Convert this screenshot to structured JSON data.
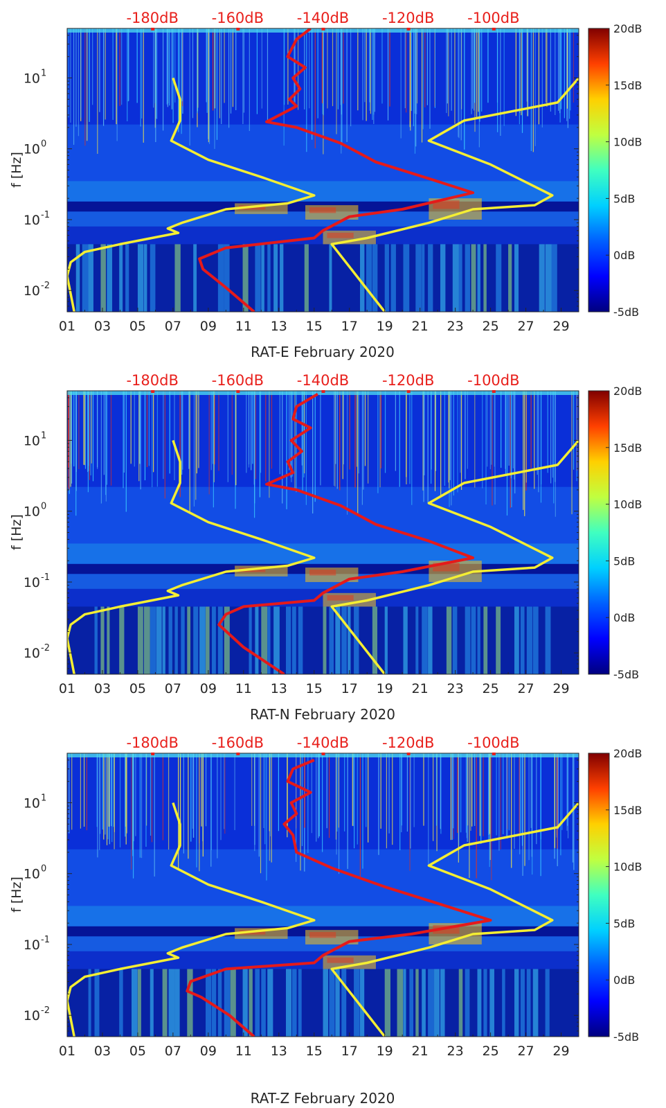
{
  "colors": {
    "noise_model": "#f4ee33",
    "site_curve": "#e51a1a",
    "top_db_labels": "#e8201c",
    "colormap": [
      "#00007f",
      "#0000ff",
      "#0080ff",
      "#00ffff",
      "#80ff80",
      "#ffff00",
      "#ff8000",
      "#ff0000",
      "#800000"
    ]
  },
  "shared": {
    "ylabel": "f [Hz]",
    "y_tick_labels": [
      {
        "mant": "10",
        "exp": "1",
        "value": 10
      },
      {
        "mant": "10",
        "exp": "0",
        "value": 1
      },
      {
        "mant": "10",
        "exp": "-1",
        "value": 0.1
      },
      {
        "mant": "10",
        "exp": "-2",
        "value": 0.01
      }
    ],
    "x_tick_labels": [
      "01",
      "03",
      "05",
      "07",
      "09",
      "11",
      "13",
      "15",
      "17",
      "19",
      "21",
      "23",
      "25",
      "27",
      "29"
    ],
    "top_db_labels": [
      "-180dB",
      "-160dB",
      "-140dB",
      "-120dB",
      "-100dB"
    ],
    "colorbar_labels": [
      "20dB",
      "15dB",
      "10dB",
      "5dB",
      "0dB",
      "-5dB"
    ],
    "colorbar_range": [
      -5,
      20
    ]
  },
  "chart_data": [
    {
      "type": "heatmap",
      "title": "",
      "xlabel": "RAT-E February 2020",
      "ylabel": "f [Hz]",
      "x_unit": "day of February 2020",
      "xlim": [
        1,
        30
      ],
      "ylim": [
        0.005,
        50
      ],
      "y_scale": "log",
      "color_scale_db": [
        -5,
        20
      ],
      "top_axis_db": [
        -180,
        -160,
        -140,
        -120,
        -100
      ],
      "series": [
        {
          "name": "noise-model-low",
          "color": "#f4ee33",
          "points": [
            [
              7.0,
              10
            ],
            [
              7.4,
              5
            ],
            [
              7.4,
              2.5
            ],
            [
              6.9,
              1.3
            ],
            [
              9.0,
              0.7
            ],
            [
              12.0,
              0.4
            ],
            [
              15.0,
              0.22
            ],
            [
              13.5,
              0.17
            ],
            [
              10.0,
              0.14
            ],
            [
              7.5,
              0.09
            ],
            [
              6.7,
              0.075
            ],
            [
              7.3,
              0.065
            ],
            [
              4.0,
              0.045
            ],
            [
              2.0,
              0.035
            ],
            [
              1.2,
              0.025
            ],
            [
              1.0,
              0.016
            ],
            [
              1.4,
              0.005
            ]
          ]
        },
        {
          "name": "noise-model-high",
          "color": "#f4ee33",
          "points": [
            [
              30.0,
              10
            ],
            [
              28.8,
              4.5
            ],
            [
              23.5,
              2.5
            ],
            [
              21.5,
              1.3
            ],
            [
              25.0,
              0.6
            ],
            [
              28.5,
              0.22
            ],
            [
              27.5,
              0.16
            ],
            [
              24.0,
              0.14
            ],
            [
              21.5,
              0.09
            ],
            [
              18.0,
              0.055
            ],
            [
              16.0,
              0.045
            ],
            [
              19.0,
              0.005
            ]
          ]
        },
        {
          "name": "site-noise-level",
          "color": "#e51a1a",
          "points": [
            [
              14.8,
              50
            ],
            [
              14.0,
              35
            ],
            [
              13.5,
              20
            ],
            [
              14.5,
              14
            ],
            [
              13.8,
              10
            ],
            [
              14.2,
              7
            ],
            [
              13.6,
              5
            ],
            [
              14.0,
              4
            ],
            [
              12.3,
              2.4
            ],
            [
              14.0,
              2.0
            ],
            [
              16.5,
              1.2
            ],
            [
              18.5,
              0.65
            ],
            [
              21.5,
              0.38
            ],
            [
              24.0,
              0.24
            ],
            [
              20.0,
              0.14
            ],
            [
              17.0,
              0.11
            ],
            [
              15.5,
              0.07
            ],
            [
              15.0,
              0.055
            ],
            [
              10.0,
              0.04
            ],
            [
              8.5,
              0.028
            ],
            [
              8.7,
              0.02
            ],
            [
              10.0,
              0.011
            ],
            [
              11.6,
              0.005
            ]
          ]
        }
      ]
    },
    {
      "type": "heatmap",
      "title": "",
      "xlabel": "RAT-N February 2020",
      "ylabel": "f [Hz]",
      "x_unit": "day of February 2020",
      "xlim": [
        1,
        30
      ],
      "ylim": [
        0.005,
        50
      ],
      "y_scale": "log",
      "color_scale_db": [
        -5,
        20
      ],
      "top_axis_db": [
        -180,
        -160,
        -140,
        -120,
        -100
      ],
      "series": [
        {
          "name": "noise-model-low",
          "color": "#f4ee33",
          "points": [
            [
              7.0,
              10
            ],
            [
              7.4,
              5
            ],
            [
              7.4,
              2.5
            ],
            [
              6.9,
              1.3
            ],
            [
              9.0,
              0.7
            ],
            [
              12.0,
              0.4
            ],
            [
              15.0,
              0.22
            ],
            [
              13.5,
              0.17
            ],
            [
              10.0,
              0.14
            ],
            [
              7.5,
              0.09
            ],
            [
              6.7,
              0.075
            ],
            [
              7.3,
              0.065
            ],
            [
              4.0,
              0.045
            ],
            [
              2.0,
              0.035
            ],
            [
              1.2,
              0.025
            ],
            [
              1.0,
              0.016
            ],
            [
              1.4,
              0.005
            ]
          ]
        },
        {
          "name": "noise-model-high",
          "color": "#f4ee33",
          "points": [
            [
              30.0,
              10
            ],
            [
              28.8,
              4.5
            ],
            [
              23.5,
              2.5
            ],
            [
              21.5,
              1.3
            ],
            [
              25.0,
              0.6
            ],
            [
              28.5,
              0.22
            ],
            [
              27.5,
              0.16
            ],
            [
              24.0,
              0.14
            ],
            [
              21.5,
              0.09
            ],
            [
              18.0,
              0.055
            ],
            [
              16.0,
              0.045
            ],
            [
              19.0,
              0.005
            ]
          ]
        },
        {
          "name": "site-noise-level",
          "color": "#e51a1a",
          "points": [
            [
              15.2,
              45
            ],
            [
              14.0,
              30
            ],
            [
              13.8,
              20
            ],
            [
              14.8,
              15
            ],
            [
              13.7,
              10
            ],
            [
              14.3,
              7
            ],
            [
              13.5,
              5
            ],
            [
              13.8,
              3.5
            ],
            [
              12.3,
              2.4
            ],
            [
              14.0,
              2.0
            ],
            [
              16.5,
              1.2
            ],
            [
              18.5,
              0.65
            ],
            [
              21.5,
              0.38
            ],
            [
              24.0,
              0.22
            ],
            [
              20.0,
              0.14
            ],
            [
              17.0,
              0.11
            ],
            [
              15.5,
              0.07
            ],
            [
              15.0,
              0.055
            ],
            [
              11.0,
              0.045
            ],
            [
              10.0,
              0.035
            ],
            [
              9.6,
              0.025
            ],
            [
              11.0,
              0.012
            ],
            [
              13.3,
              0.005
            ]
          ]
        }
      ]
    },
    {
      "type": "heatmap",
      "title": "",
      "xlabel": "RAT-Z February 2020",
      "ylabel": "f [Hz]",
      "x_unit": "day of February 2020",
      "xlim": [
        1,
        30
      ],
      "ylim": [
        0.005,
        50
      ],
      "y_scale": "log",
      "color_scale_db": [
        -5,
        20
      ],
      "top_axis_db": [
        -180,
        -160,
        -140,
        -120,
        -100
      ],
      "series": [
        {
          "name": "noise-model-low",
          "color": "#f4ee33",
          "points": [
            [
              7.0,
              10
            ],
            [
              7.4,
              5
            ],
            [
              7.4,
              2.5
            ],
            [
              6.9,
              1.3
            ],
            [
              9.0,
              0.7
            ],
            [
              12.0,
              0.4
            ],
            [
              15.0,
              0.22
            ],
            [
              13.5,
              0.17
            ],
            [
              10.0,
              0.14
            ],
            [
              7.5,
              0.09
            ],
            [
              6.7,
              0.075
            ],
            [
              7.3,
              0.065
            ],
            [
              4.0,
              0.045
            ],
            [
              2.0,
              0.035
            ],
            [
              1.2,
              0.025
            ],
            [
              1.0,
              0.016
            ],
            [
              1.4,
              0.005
            ]
          ]
        },
        {
          "name": "noise-model-high",
          "color": "#f4ee33",
          "points": [
            [
              30.0,
              10
            ],
            [
              28.8,
              4.5
            ],
            [
              23.5,
              2.5
            ],
            [
              21.5,
              1.3
            ],
            [
              25.0,
              0.6
            ],
            [
              28.5,
              0.22
            ],
            [
              27.5,
              0.16
            ],
            [
              24.0,
              0.14
            ],
            [
              21.5,
              0.09
            ],
            [
              18.0,
              0.055
            ],
            [
              16.0,
              0.045
            ],
            [
              19.0,
              0.005
            ]
          ]
        },
        {
          "name": "site-noise-level",
          "color": "#e51a1a",
          "points": [
            [
              15.0,
              40
            ],
            [
              13.8,
              30
            ],
            [
              13.5,
              20
            ],
            [
              14.8,
              14
            ],
            [
              13.7,
              10
            ],
            [
              14.0,
              7
            ],
            [
              13.3,
              5
            ],
            [
              13.8,
              3.5
            ],
            [
              14.0,
              2.0
            ],
            [
              16.0,
              1.2
            ],
            [
              19.0,
              0.65
            ],
            [
              22.0,
              0.38
            ],
            [
              25.0,
              0.22
            ],
            [
              20.5,
              0.14
            ],
            [
              17.0,
              0.11
            ],
            [
              15.5,
              0.07
            ],
            [
              15.0,
              0.055
            ],
            [
              10.0,
              0.045
            ],
            [
              8.0,
              0.03
            ],
            [
              7.8,
              0.022
            ],
            [
              8.6,
              0.018
            ],
            [
              10.2,
              0.01
            ],
            [
              11.6,
              0.005
            ]
          ]
        }
      ]
    }
  ]
}
